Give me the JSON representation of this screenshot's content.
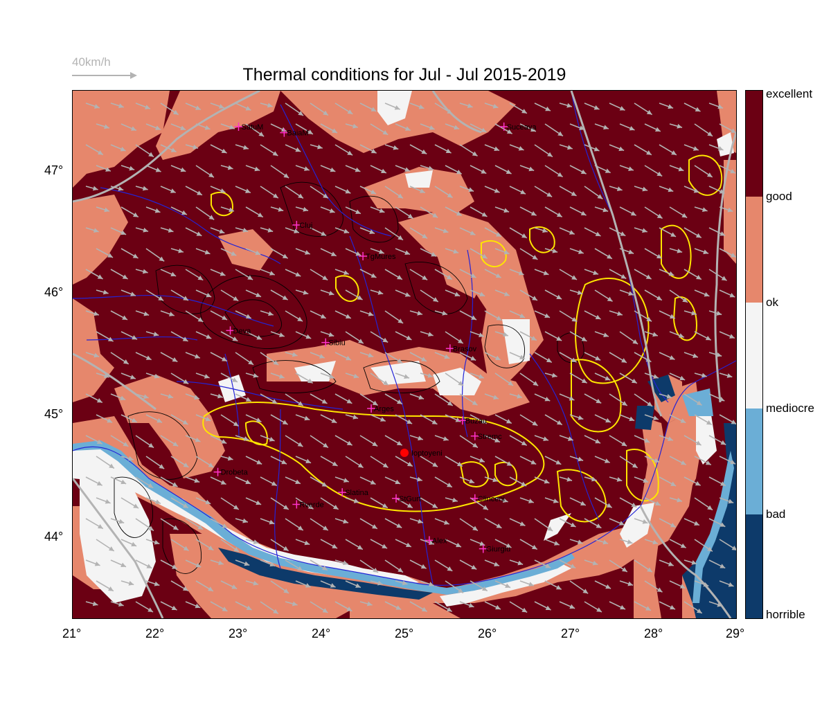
{
  "title": "Thermal conditions for Jul - Jul  2015-2019",
  "wind_scale_label": "40km/h",
  "x_ticks": [
    "21°",
    "22°",
    "23°",
    "24°",
    "25°",
    "26°",
    "27°",
    "28°",
    "29°"
  ],
  "y_ticks": [
    "47°",
    "46°",
    "45°",
    "44°"
  ],
  "colorbar_labels": [
    "excellent",
    "good",
    "ok",
    "mediocre",
    "bad",
    "horrible"
  ],
  "colors": {
    "excellent": "#6b0013",
    "good": "#e6876c",
    "ok": "#f4f4f4",
    "mediocre": "#6baed6",
    "bad": "#0d3a6a",
    "horrible": "#0d3a6a",
    "border": "#b3b3b3",
    "rivers": "#2424d6",
    "contour_yellow": "#ffe600",
    "marker": "#ff0000",
    "city_cross": "#ff33cc"
  },
  "map": {
    "lon_range": [
      21,
      29
    ],
    "lat_range": [
      43.3,
      47.7
    ],
    "marker": {
      "name": "Ioptoyeni",
      "lon": 25.0,
      "lat": 44.68
    },
    "cities": [
      {
        "name": "SatuM",
        "lon": 23.0,
        "lat": 47.4
      },
      {
        "name": "BaiaM",
        "lon": 23.55,
        "lat": 47.35
      },
      {
        "name": "Suceava",
        "lon": 26.2,
        "lat": 47.4
      },
      {
        "name": "Cluj",
        "lon": 23.7,
        "lat": 46.58
      },
      {
        "name": "TgMures",
        "lon": 24.5,
        "lat": 46.32
      },
      {
        "name": "Deva",
        "lon": 22.9,
        "lat": 45.7
      },
      {
        "name": "Sibiu",
        "lon": 24.05,
        "lat": 45.6
      },
      {
        "name": "Brasov",
        "lon": 25.55,
        "lat": 45.55
      },
      {
        "name": "Arges",
        "lon": 24.6,
        "lat": 45.05
      },
      {
        "name": "Buzau",
        "lon": 25.7,
        "lat": 44.95
      },
      {
        "name": "Stremc",
        "lon": 25.85,
        "lat": 44.82
      },
      {
        "name": "Drobeta",
        "lon": 22.75,
        "lat": 44.52
      },
      {
        "name": "Slatina",
        "lon": 24.25,
        "lat": 44.35
      },
      {
        "name": "StGurt",
        "lon": 24.9,
        "lat": 44.3
      },
      {
        "name": "Clinceni",
        "lon": 25.85,
        "lat": 44.3
      },
      {
        "name": "Rverde",
        "lon": 23.7,
        "lat": 44.25
      },
      {
        "name": "Alex",
        "lon": 25.3,
        "lat": 43.95
      },
      {
        "name": "Giurgiu",
        "lon": 25.95,
        "lat": 43.88
      }
    ]
  }
}
